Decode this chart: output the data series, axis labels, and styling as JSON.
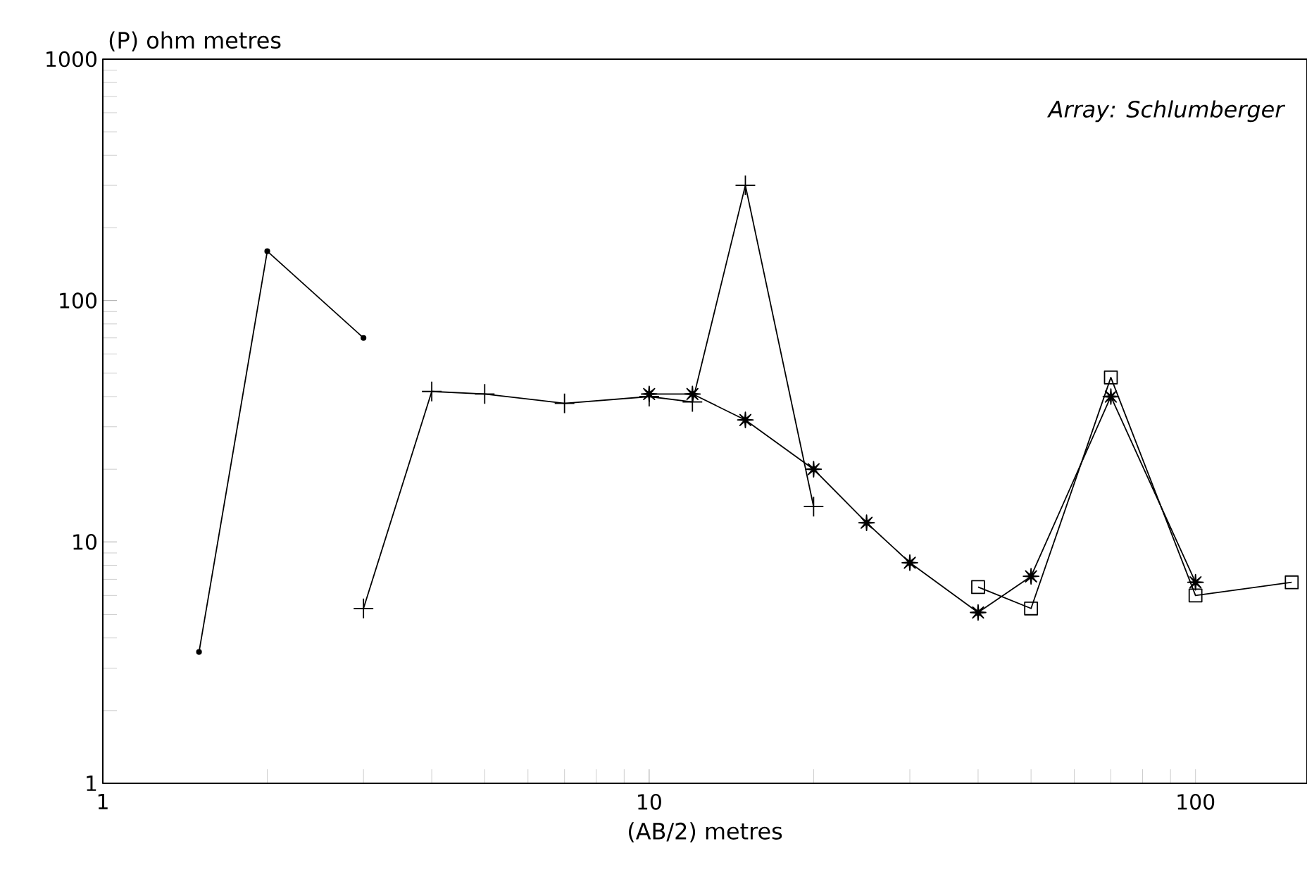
{
  "chart_data": {
    "type": "line",
    "xlabel": "(AB/2) metres",
    "ylabel": "(P) ohm metres",
    "annotations": [
      "Array: Schlumberger"
    ],
    "log": "xy",
    "xlim": [
      1,
      160
    ],
    "ylim": [
      1,
      1000
    ],
    "xticks": [
      1,
      10,
      100
    ],
    "yticks": [
      1,
      10,
      100,
      1000
    ],
    "series": [
      {
        "color": "#000000",
        "marker": "circle",
        "x": [
          1.5,
          2,
          3
        ],
        "values": [
          3.5,
          160,
          70
        ]
      },
      {
        "color": "#000000",
        "marker": "cross",
        "x": [
          3,
          4,
          5,
          7,
          10,
          12,
          15,
          20
        ],
        "values": [
          5.3,
          42,
          41,
          37.5,
          40,
          38,
          300,
          14
        ]
      },
      {
        "color": "#000000",
        "marker": "star",
        "x": [
          10,
          12,
          15,
          20,
          25,
          30,
          40,
          50,
          70,
          100
        ],
        "values": [
          41,
          41,
          32,
          20,
          12,
          8.2,
          5.1,
          7.2,
          40,
          6.8
        ]
      },
      {
        "color": "#000000",
        "marker": "square",
        "x": [
          40,
          50,
          70,
          100,
          150
        ],
        "values": [
          6.5,
          5.3,
          48,
          6,
          6.8
        ]
      }
    ]
  }
}
